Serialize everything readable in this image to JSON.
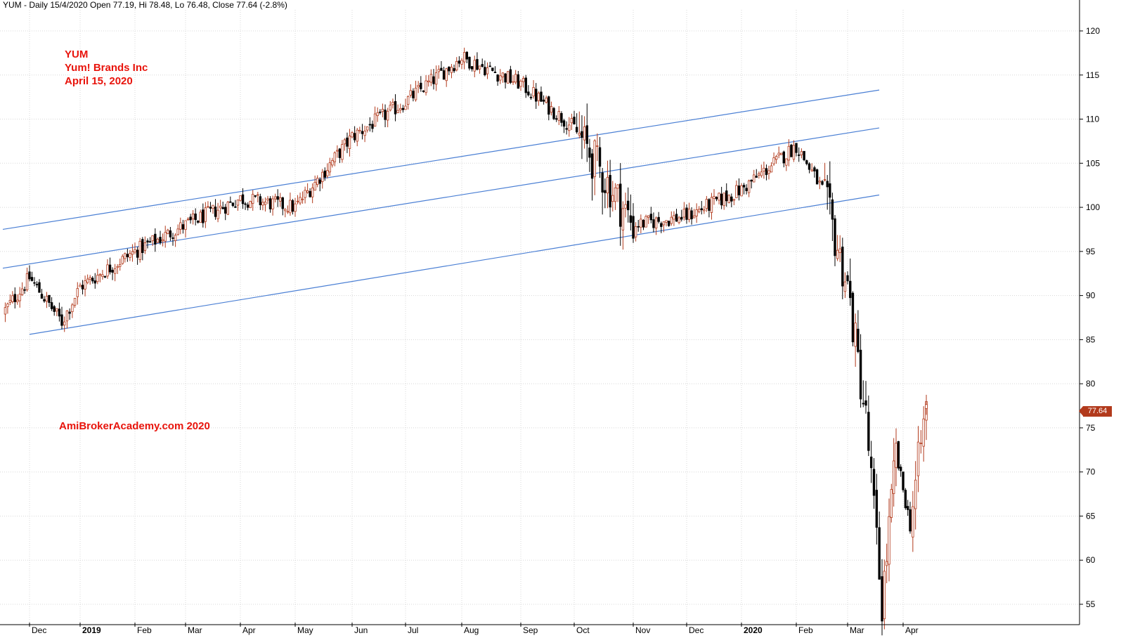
{
  "header": {
    "text": "YUM - Daily 15/4/2020 Open 77.19, Hi 78.48, Lo 76.48, Close 77.64 (-2.8%)"
  },
  "annotation": {
    "line1": "YUM",
    "line2": "Yum! Brands Inc",
    "line3": "April 15, 2020"
  },
  "watermark": "AmiBrokerAcademy.com   2020",
  "last_price_label": "77.64",
  "colors": {
    "up_candle": "#b23a1c",
    "down_candle": "#000000",
    "trendline": "#4a7fd4",
    "grid": "#d8d8d8",
    "annotation": "#e8140c"
  },
  "chart_data": {
    "type": "candlestick",
    "title": "",
    "xlabel": "",
    "ylabel": "",
    "ylim": [
      54,
      121
    ],
    "y_ticks": [
      55,
      60,
      65,
      70,
      75,
      80,
      85,
      90,
      95,
      100,
      105,
      110,
      115,
      120
    ],
    "x_ticks": [
      {
        "label": "Dec",
        "bold": false
      },
      {
        "label": "2019",
        "bold": true
      },
      {
        "label": "Feb",
        "bold": false
      },
      {
        "label": "Mar",
        "bold": false
      },
      {
        "label": "Apr",
        "bold": false
      },
      {
        "label": "May",
        "bold": false
      },
      {
        "label": "Jun",
        "bold": false
      },
      {
        "label": "Jul",
        "bold": false
      },
      {
        "label": "Aug",
        "bold": false
      },
      {
        "label": "Sep",
        "bold": false
      },
      {
        "label": "Oct",
        "bold": false
      },
      {
        "label": "Nov",
        "bold": false
      },
      {
        "label": "Dec",
        "bold": false
      },
      {
        "label": "2020",
        "bold": true
      },
      {
        "label": "Feb",
        "bold": false
      },
      {
        "label": "Mar",
        "bold": false
      },
      {
        "label": "Apr",
        "bold": false
      }
    ],
    "grid": true,
    "price_path": [
      {
        "month": "Nov 2018 (late)",
        "close": 88
      },
      {
        "month": "Dec 2018 (start)",
        "close": 92
      },
      {
        "month": "Dec 2018 (mid)",
        "close": 89
      },
      {
        "month": "Dec 2018 (late)",
        "close": 87
      },
      {
        "month": "Jan 2019",
        "close": 91
      },
      {
        "month": "Feb 2019",
        "close": 95
      },
      {
        "month": "Mar 2019",
        "close": 98
      },
      {
        "month": "Apr 2019",
        "close": 101
      },
      {
        "month": "May 2019",
        "close": 100
      },
      {
        "month": "Jun 2019",
        "close": 108
      },
      {
        "month": "Jul 2019",
        "close": 112
      },
      {
        "month": "Aug 2019",
        "close": 117
      },
      {
        "month": "Sep 2019",
        "close": 114
      },
      {
        "month": "Oct 2019",
        "close": 109
      },
      {
        "month": "Nov 2019",
        "close": 98
      },
      {
        "month": "Dec 2019",
        "close": 99
      },
      {
        "month": "Jan 2020",
        "close": 102
      },
      {
        "month": "Feb 2020 (start)",
        "close": 107
      },
      {
        "month": "Feb 2020 (late)",
        "close": 102
      },
      {
        "month": "Mar 2020 (start)",
        "close": 91
      },
      {
        "month": "Mar 2020 (mid)",
        "close": 76
      },
      {
        "month": "Mar 2020 (low)",
        "close": 55
      },
      {
        "month": "Mar 2020 (end)",
        "close": 72
      },
      {
        "month": "Apr 2020 (start)",
        "close": 64
      },
      {
        "month": "Apr 15 2020",
        "open": 77.19,
        "high": 78.48,
        "low": 76.48,
        "close": 77.64
      }
    ],
    "trendlines": [
      {
        "name": "channel-upper",
        "from": {
          "x": "Nov 2018 (late)",
          "y": 97.5
        },
        "to": {
          "x": "Mar 2020 (start)",
          "y": 113.3
        }
      },
      {
        "name": "channel-middle",
        "from": {
          "x": "Nov 2018 (late)",
          "y": 93.1
        },
        "to": {
          "x": "Mar 2020 (start)",
          "y": 109
        }
      },
      {
        "name": "channel-lower",
        "from": {
          "x": "Dec 2018 (start)",
          "y": 85.6
        },
        "to": {
          "x": "Mar 2020 (start)",
          "y": 101.4
        }
      }
    ]
  }
}
